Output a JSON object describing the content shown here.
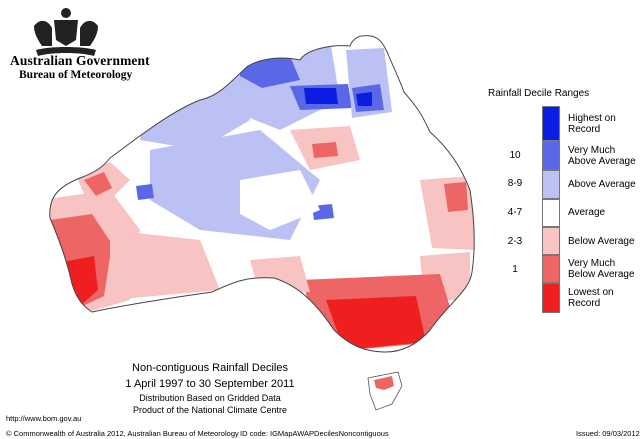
{
  "header": {
    "government": "Australian Government",
    "bureau": "Bureau of Meteorology"
  },
  "legend": {
    "title": "Rainfall Decile Ranges",
    "items": [
      {
        "range": "",
        "lines": [
          "Highest on",
          "Record"
        ],
        "color": "#0b1de0"
      },
      {
        "range": "10",
        "lines": [
          "Very Much",
          "Above Average"
        ],
        "color": "#5a68e8"
      },
      {
        "range": "8-9",
        "lines": [
          "Above Average"
        ],
        "color": "#bcc1f3"
      },
      {
        "range": "4-7",
        "lines": [
          "Average"
        ],
        "color": "#ffffff"
      },
      {
        "range": "2-3",
        "lines": [
          "Below Average"
        ],
        "color": "#f7c3c3"
      },
      {
        "range": "1",
        "lines": [
          "Very Much",
          "Below Average"
        ],
        "color": "#ed6565"
      },
      {
        "range": "",
        "lines": [
          "Lowest on",
          "Record"
        ],
        "color": "#ef1f1f"
      }
    ]
  },
  "caption": {
    "line1": "Non-contiguous Rainfall Deciles",
    "line2": "1 April 1997 to 30 September 2011",
    "line3": "Distribution Based on Gridded Data",
    "line4": "Product of the National Climate Centre"
  },
  "footer": {
    "url": "http://www.bom.gov.au",
    "copyright": "© Commonwealth of Australia 2012, Australian Bureau of Meteorology",
    "id_code": "ID code: IGMapAWAPDecilesNoncontiguous",
    "issued": "Issued: 09/03/2012"
  }
}
